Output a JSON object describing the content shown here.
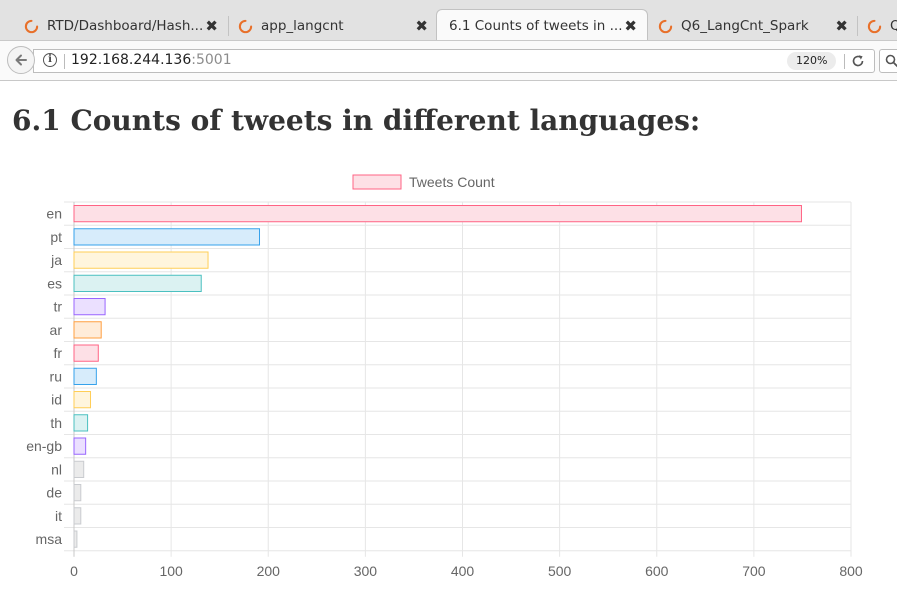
{
  "browser": {
    "tabs": [
      {
        "title": "RTD/Dashboard/Hash...",
        "active": false,
        "icon": "loading-spinner-icon"
      },
      {
        "title": "app_langcnt",
        "active": false,
        "icon": "loading-spinner-icon"
      },
      {
        "title": "6.1 Counts of tweets in ...",
        "active": true,
        "icon": "loading-spinner-icon"
      },
      {
        "title": "Q6_LangCnt_Spark",
        "active": false,
        "icon": "loading-spinner-icon"
      },
      {
        "title": "Q",
        "active": false,
        "icon": "loading-spinner-icon"
      }
    ],
    "close_glyph": "✖",
    "url_host": "192.168.244.136",
    "url_port": ":5001",
    "zoom": "120%"
  },
  "page": {
    "title": "6.1 Counts of tweets in different languages:"
  },
  "chart_data": {
    "type": "bar",
    "orientation": "horizontal",
    "categories": [
      "en",
      "pt",
      "ja",
      "es",
      "tr",
      "ar",
      "fr",
      "ru",
      "id",
      "th",
      "en-gb",
      "nl",
      "de",
      "it",
      "msa"
    ],
    "series": [
      {
        "name": "Tweets Count",
        "values": [
          749,
          191,
          138,
          131,
          32,
          28,
          25,
          23,
          17,
          14,
          12,
          10,
          7,
          7,
          3
        ]
      }
    ],
    "xlim": [
      0,
      800
    ],
    "xticks": [
      0,
      100,
      200,
      300,
      400,
      500,
      600,
      700,
      800
    ],
    "legend": "top-center",
    "grid": true,
    "colors": [
      {
        "fill": "#fde0e6",
        "stroke": "#ff6384"
      },
      {
        "fill": "#d7ecfb",
        "stroke": "#36a2eb"
      },
      {
        "fill": "#fff5dd",
        "stroke": "#ffce56"
      },
      {
        "fill": "#dbf2f2",
        "stroke": "#4bc0c0"
      },
      {
        "fill": "#ebe0ff",
        "stroke": "#9966ff"
      },
      {
        "fill": "#ffecd9",
        "stroke": "#ff9f40"
      },
      {
        "fill": "#fde0e6",
        "stroke": "#ff6384"
      },
      {
        "fill": "#d7ecfb",
        "stroke": "#36a2eb"
      },
      {
        "fill": "#fff5dd",
        "stroke": "#ffce56"
      },
      {
        "fill": "#dbf2f2",
        "stroke": "#4bc0c0"
      },
      {
        "fill": "#ebe0ff",
        "stroke": "#9966ff"
      },
      {
        "fill": "#ebebeb",
        "stroke": "#c9cbcf"
      },
      {
        "fill": "#ebebeb",
        "stroke": "#c9cbcf"
      },
      {
        "fill": "#ebebeb",
        "stroke": "#c9cbcf"
      },
      {
        "fill": "#ebebeb",
        "stroke": "#c9cbcf"
      }
    ],
    "legend_colors": {
      "fill": "#fde0e6",
      "stroke": "#ff6384"
    }
  }
}
